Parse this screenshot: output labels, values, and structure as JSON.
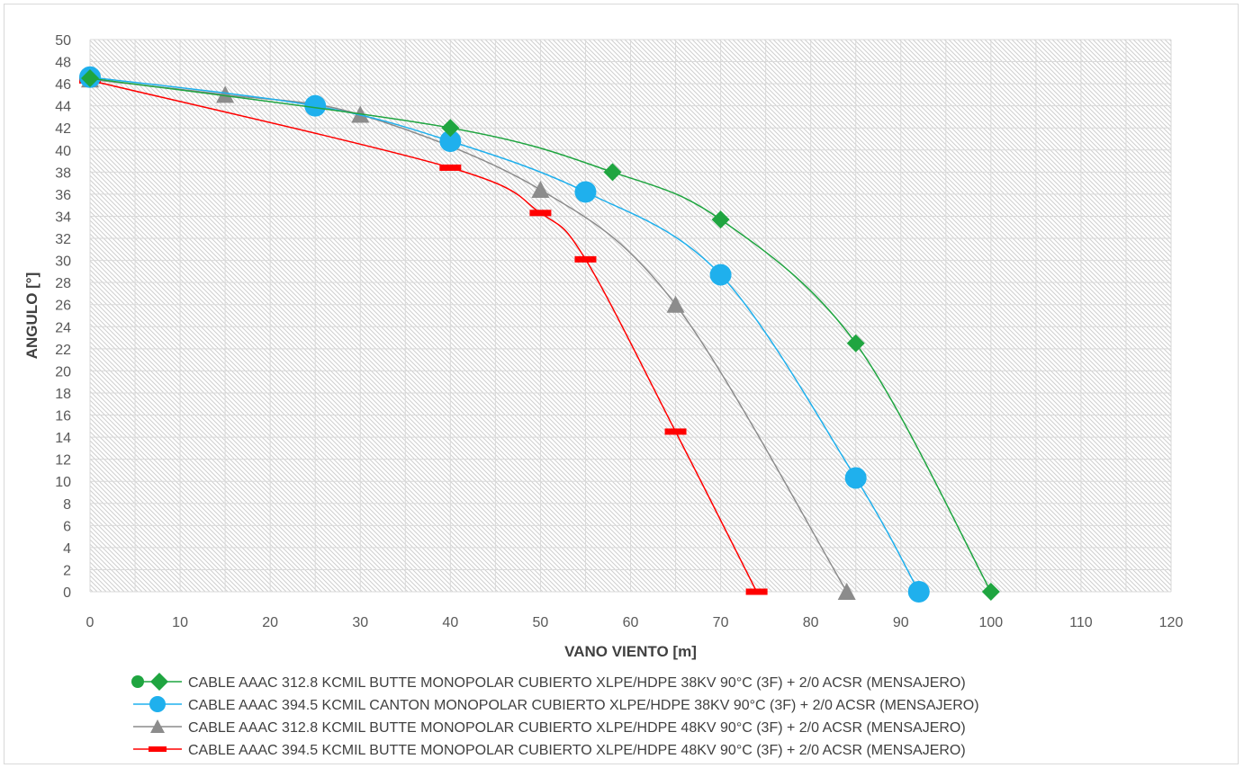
{
  "chart_data": {
    "type": "line",
    "title": "",
    "xlabel": "VANO VIENTO [m]",
    "ylabel": "ANGULO [°]",
    "xlim": [
      0,
      120
    ],
    "ylim": [
      0,
      50
    ],
    "x_ticks": [
      0,
      10,
      20,
      30,
      40,
      50,
      60,
      70,
      80,
      90,
      100,
      110,
      120
    ],
    "y_ticks": [
      0,
      2,
      4,
      6,
      8,
      10,
      12,
      14,
      16,
      18,
      20,
      22,
      24,
      26,
      28,
      30,
      32,
      34,
      36,
      38,
      40,
      42,
      44,
      46,
      48,
      50
    ],
    "grid": true,
    "legend_position": "bottom",
    "series": [
      {
        "name": "CABLE AAAC 312.8 KCMIL BUTTE MONOPOLAR CUBIERTO XLPE/HDPE 38KV 90°C (3F) + 2/0 ACSR  (MENSAJERO)",
        "color": "#1fa540",
        "marker": "diamond",
        "points": [
          [
            0,
            46.5
          ],
          [
            40,
            42
          ],
          [
            58,
            38
          ],
          [
            70,
            33.7
          ],
          [
            85,
            22.5
          ],
          [
            100,
            0
          ]
        ]
      },
      {
        "name": "CABLE AAAC 394.5 KCMIL CANTON MONOPOLAR CUBIERTO XLPE/HDPE 38KV 90°C (3F) + 2/0 ACSR  (MENSAJERO)",
        "color": "#1fb0ed",
        "marker": "circle",
        "points": [
          [
            0,
            46.6
          ],
          [
            25,
            44
          ],
          [
            40,
            40.8
          ],
          [
            55,
            36.2
          ],
          [
            70,
            28.7
          ],
          [
            85,
            10.3
          ],
          [
            92,
            0
          ]
        ]
      },
      {
        "name": "CABLE AAAC 312.8 KCMIL BUTTE MONOPOLAR CUBIERTO XLPE/HDPE 48KV 90°C (3F) + 2/0 ACSR  (MENSAJERO)",
        "color": "#8c8c8c",
        "marker": "triangle",
        "points": [
          [
            0,
            46.4
          ],
          [
            15,
            45
          ],
          [
            30,
            43.2
          ],
          [
            50,
            36.4
          ],
          [
            65,
            26
          ],
          [
            84,
            0
          ]
        ]
      },
      {
        "name": "CABLE AAAC 394.5 KCMIL BUTTE MONOPOLAR CUBIERTO XLPE/HDPE 48KV 90°C (3F) + 2/0 ACSR  (MENSAJERO)",
        "color": "#ff0000",
        "marker": "dash",
        "points": [
          [
            0,
            46.3
          ],
          [
            40,
            38.4
          ],
          [
            50,
            34.3
          ],
          [
            55,
            30.1
          ],
          [
            65,
            14.5
          ],
          [
            74,
            0
          ]
        ]
      }
    ]
  }
}
